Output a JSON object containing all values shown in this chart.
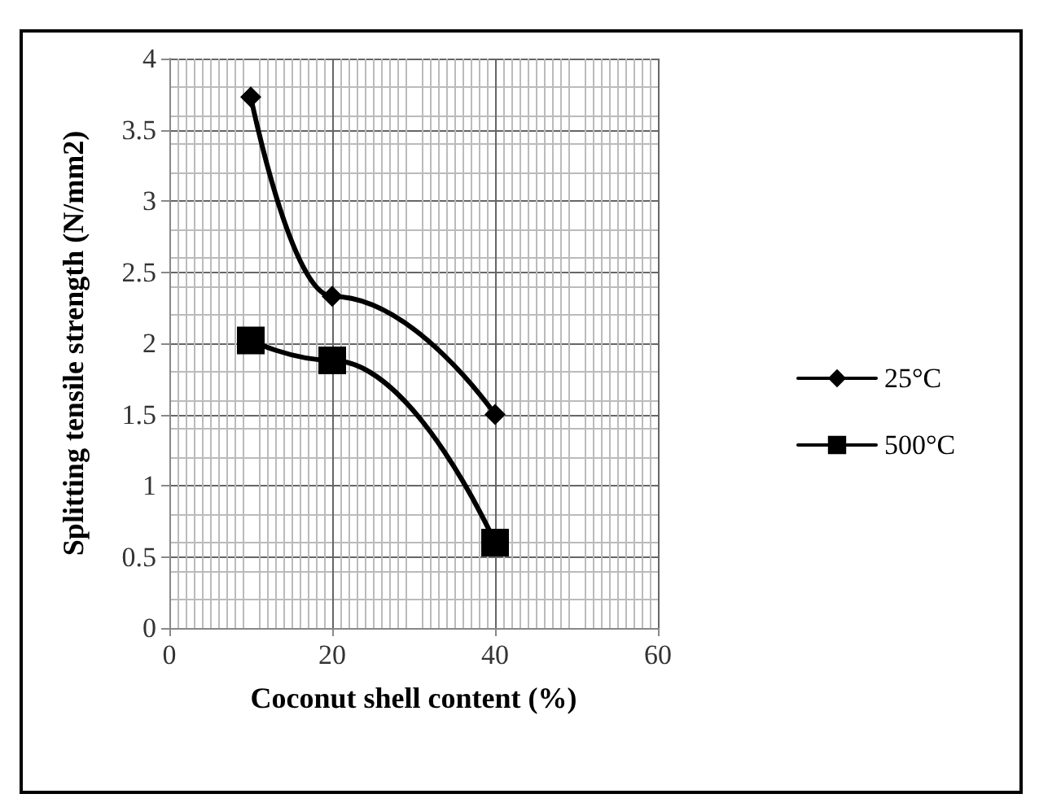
{
  "chart_data": {
    "type": "line",
    "xlabel": "Coconut shell content (%)",
    "ylabel": "Splitting tensile strength (N/mm2)",
    "series": [
      {
        "name": "25°C",
        "color": "#000000",
        "marker": "diamond",
        "x": [
          10,
          20,
          40
        ],
        "values": [
          3.73,
          2.33,
          1.5
        ]
      },
      {
        "name": "500°C",
        "color": "#000000",
        "marker": "square",
        "x": [
          10,
          20,
          40
        ],
        "values": [
          2.02,
          1.88,
          0.6
        ]
      }
    ],
    "xlim": [
      0,
      60
    ],
    "xticks": [
      0,
      20,
      40,
      60
    ],
    "ylim": [
      0,
      4
    ],
    "yticks": [
      0,
      0.5,
      1,
      1.5,
      2,
      2.5,
      3,
      3.5,
      4
    ],
    "grid": true,
    "legend": "right",
    "line_style": "solid"
  }
}
